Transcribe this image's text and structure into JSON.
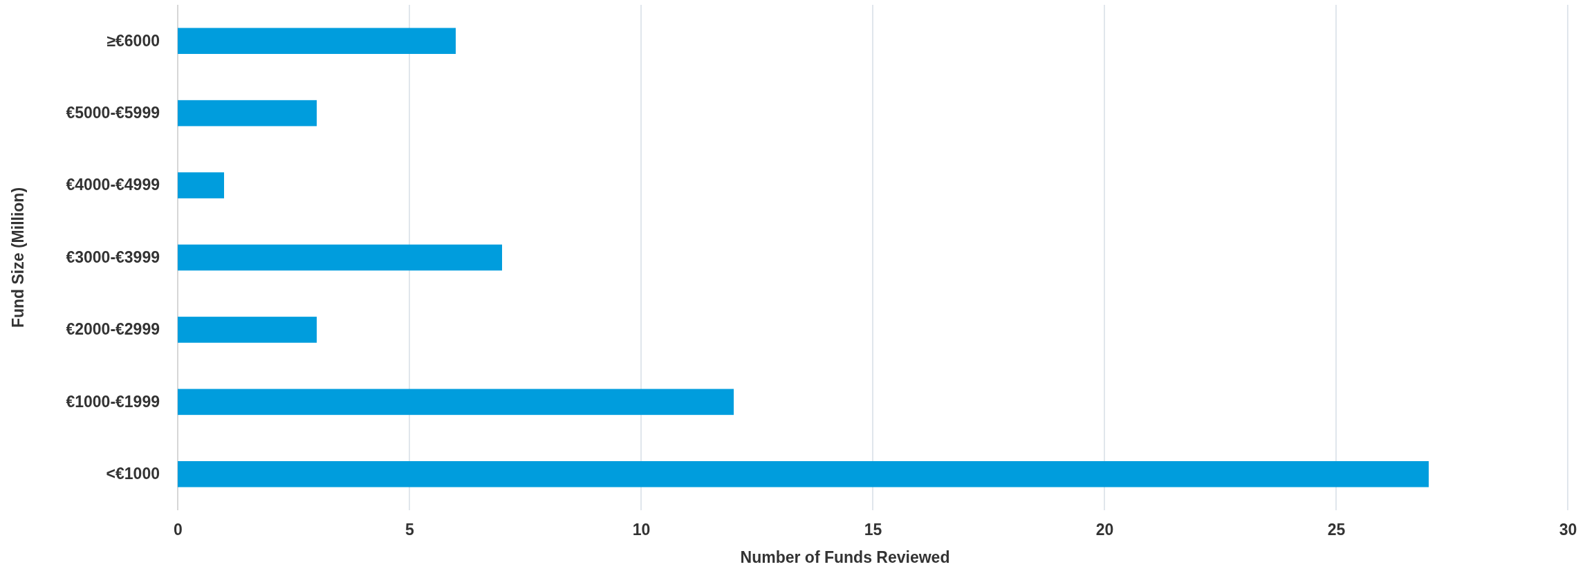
{
  "chart_data": {
    "type": "bar",
    "orientation": "horizontal",
    "xlabel": "Number of Funds Reviewed",
    "ylabel": "Fund Size (Million)",
    "categories": [
      "≥€6000",
      "€5000-€5999",
      "€4000-€4999",
      "€3000-€3999",
      "€2000-€2999",
      "€1000-€1999",
      "<€1000"
    ],
    "values": [
      6,
      3,
      1,
      7,
      3,
      12,
      27
    ],
    "color": "#009ddd",
    "xlim": [
      0,
      30
    ],
    "xticks": [
      0,
      5,
      10,
      15,
      20,
      25,
      30
    ],
    "grid": "x"
  }
}
